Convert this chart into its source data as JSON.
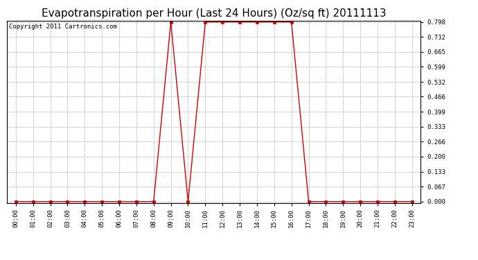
{
  "title": "Evapotranspiration per Hour (Last 24 Hours) (Oz/sq ft) 20111113",
  "copyright": "Copyright 2011 Cartronics.com",
  "x_labels": [
    "00:00",
    "01:00",
    "02:00",
    "03:00",
    "04:00",
    "05:00",
    "06:00",
    "07:00",
    "08:00",
    "09:00",
    "10:00",
    "11:00",
    "12:00",
    "13:00",
    "14:00",
    "15:00",
    "16:00",
    "17:00",
    "18:00",
    "19:00",
    "20:00",
    "21:00",
    "22:00",
    "23:00"
  ],
  "y_values": [
    0.0,
    0.0,
    0.0,
    0.0,
    0.0,
    0.0,
    0.0,
    0.0,
    0.0,
    0.798,
    0.0,
    0.798,
    0.798,
    0.798,
    0.798,
    0.798,
    0.798,
    0.0,
    0.0,
    0.0,
    0.0,
    0.0,
    0.0,
    0.0
  ],
  "y_ticks": [
    0.0,
    0.067,
    0.133,
    0.2,
    0.266,
    0.333,
    0.399,
    0.466,
    0.532,
    0.599,
    0.665,
    0.732,
    0.798
  ],
  "ylim_min": 0.0,
  "ylim_max": 0.798,
  "line_color": "#cc0000",
  "marker": "s",
  "marker_size": 2.5,
  "bg_color": "#ffffff",
  "plot_bg_color": "#ffffff",
  "grid_color": "#aaaaaa",
  "title_fontsize": 11,
  "copyright_fontsize": 6.5,
  "tick_fontsize": 6.5
}
